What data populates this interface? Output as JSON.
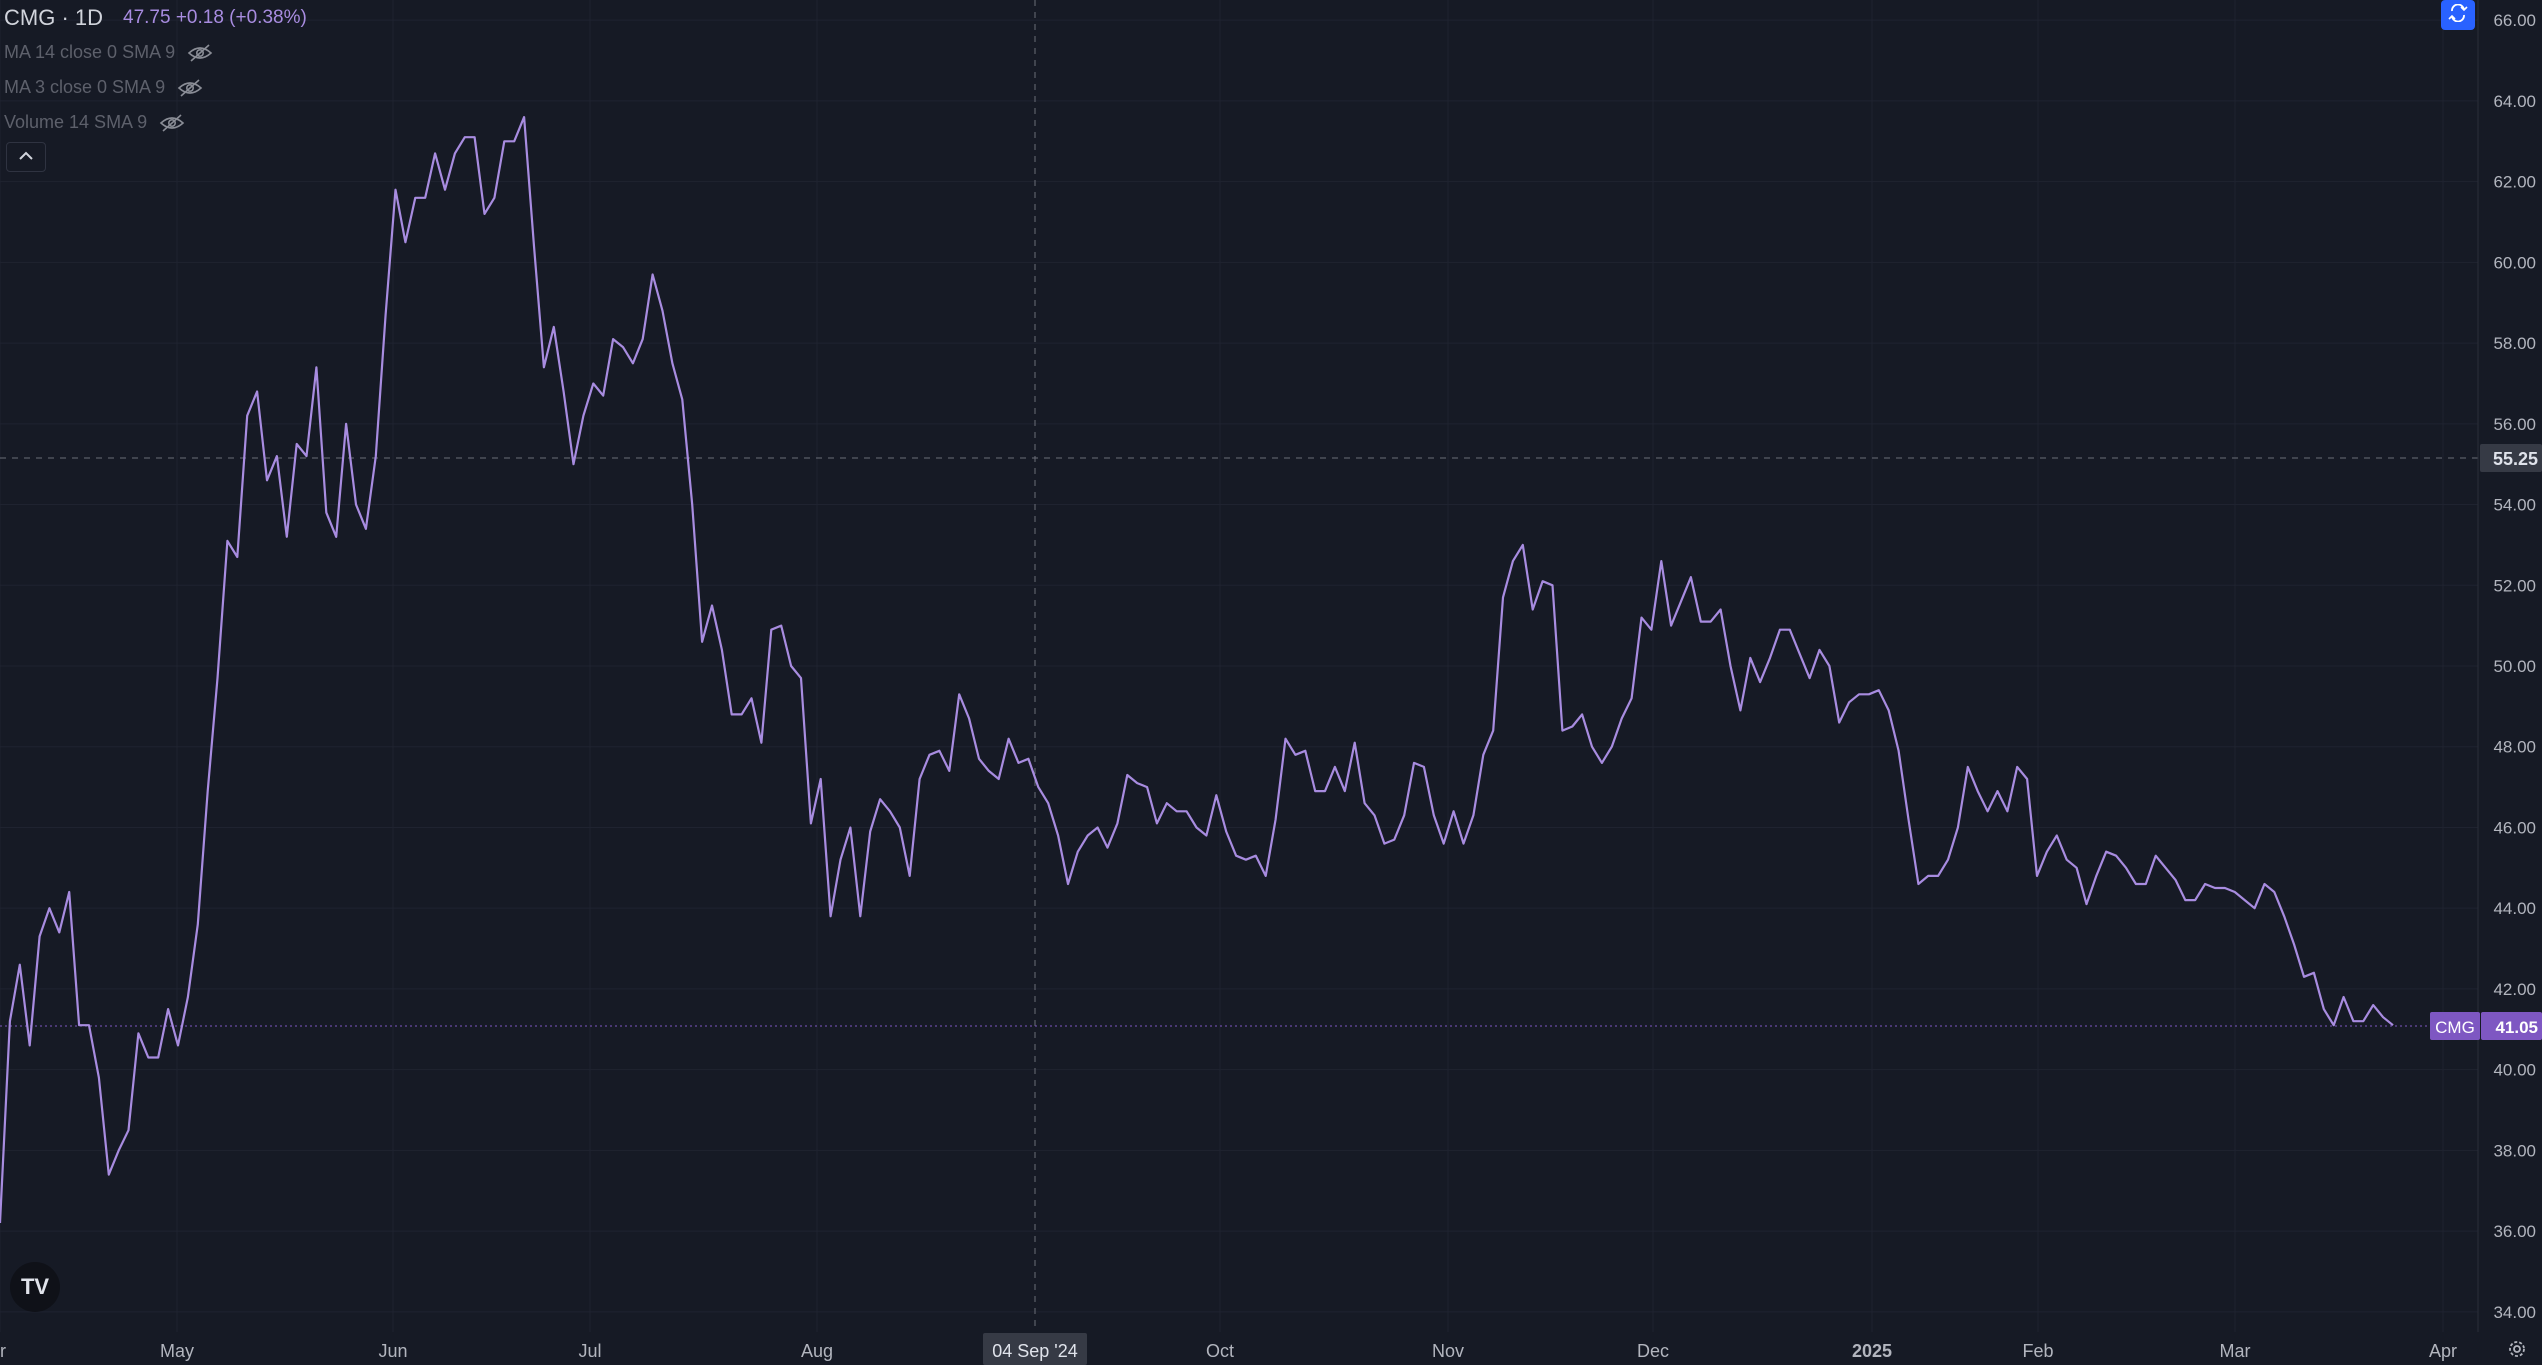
{
  "legend": {
    "symbol_title": "CMG · 1D",
    "quote": "47.75 +0.18 (+0.38%)",
    "indicators": [
      {
        "label": "MA 14 close 0 SMA 9",
        "icon": "eye-off-icon"
      },
      {
        "label": "MA 3 close 0 SMA 9",
        "icon": "eye-off-icon"
      },
      {
        "label": "Volume 14 SMA 9",
        "icon": "eye-off-icon"
      }
    ],
    "collapse_icon": "chevron-up-icon"
  },
  "logo": {
    "text": "TV"
  },
  "crosshair": {
    "date_label": "04 Sep '24",
    "price_label": "55.25"
  },
  "last_price": {
    "symbol": "CMG",
    "value": "41.05"
  },
  "colors": {
    "background": "#161a25",
    "line": "#a88ce0",
    "grid": "#1f2330",
    "axis_text": "#b2b5be",
    "accent": "#2962ff",
    "price_tag": "#7e57c2"
  },
  "chart_data": {
    "type": "line",
    "series": [
      {
        "name": "CMG",
        "values": [
          36.2,
          41.2,
          42.6,
          40.6,
          43.3,
          44.0,
          43.4,
          44.4,
          41.1,
          41.1,
          39.8,
          37.4,
          38.0,
          38.5,
          40.9,
          40.3,
          40.3,
          41.5,
          40.6,
          41.8,
          43.6,
          46.9,
          49.7,
          53.1,
          52.7,
          56.2,
          56.8,
          54.6,
          55.2,
          53.2,
          55.5,
          55.2,
          57.4,
          53.8,
          53.2,
          56.0,
          54.0,
          53.4,
          55.2,
          58.7,
          61.8,
          60.5,
          61.6,
          61.6,
          62.7,
          61.8,
          62.7,
          63.1,
          63.1,
          61.2,
          61.6,
          63.0,
          63.0,
          63.6,
          60.4,
          57.4,
          58.4,
          56.8,
          55.0,
          56.2,
          57.0,
          56.7,
          58.1,
          57.9,
          57.5,
          58.1,
          59.7,
          58.8,
          57.5,
          56.6,
          54.0,
          50.6,
          51.5,
          50.4,
          48.8,
          48.8,
          49.2,
          48.1,
          50.9,
          51.0,
          50.0,
          49.7,
          46.1,
          47.2,
          43.8,
          45.2,
          46.0,
          43.8,
          45.9,
          46.7,
          46.4,
          46.0,
          44.8,
          47.2,
          47.8,
          47.9,
          47.4,
          49.3,
          48.7,
          47.7,
          47.4,
          47.2,
          48.2,
          47.6,
          47.7,
          47.0,
          46.6,
          45.8,
          44.6,
          45.4,
          45.8,
          46.0,
          45.5,
          46.1,
          47.3,
          47.1,
          47.0,
          46.1,
          46.6,
          46.4,
          46.4,
          46.0,
          45.8,
          46.8,
          45.9,
          45.3,
          45.2,
          45.3,
          44.8,
          46.2,
          48.2,
          47.8,
          47.9,
          46.9,
          46.9,
          47.5,
          46.9,
          48.1,
          46.6,
          46.3,
          45.6,
          45.7,
          46.3,
          47.6,
          47.5,
          46.3,
          45.6,
          46.4,
          45.6,
          46.3,
          47.8,
          48.4,
          51.7,
          52.6,
          53.0,
          51.4,
          52.1,
          52.0,
          48.4,
          48.5,
          48.8,
          48.0,
          47.6,
          48.0,
          48.7,
          49.2,
          51.2,
          50.9,
          52.6,
          51.0,
          51.6,
          52.2,
          51.1,
          51.1,
          51.4,
          50.0,
          48.9,
          50.2,
          49.6,
          50.2,
          50.9,
          50.9,
          50.3,
          49.7,
          50.4,
          50.0,
          48.6,
          49.1,
          49.3,
          49.3,
          49.4,
          48.9,
          47.9,
          46.2,
          44.6,
          44.8,
          44.8,
          45.2,
          46.0,
          47.5,
          46.9,
          46.4,
          46.9,
          46.4,
          47.5,
          47.2,
          44.8,
          45.4,
          45.8,
          45.2,
          45.0,
          44.1,
          44.8,
          45.4,
          45.3,
          45.0,
          44.6,
          44.6,
          45.3,
          45.0,
          44.7,
          44.2,
          44.2,
          44.6,
          44.5,
          44.5,
          44.4,
          44.2,
          44.0,
          44.6,
          44.4,
          43.8,
          43.1,
          42.3,
          42.4,
          41.5,
          41.1,
          41.8,
          41.2,
          41.2,
          41.6,
          41.3,
          41.1
        ]
      }
    ],
    "x_labels": [
      "Apr",
      "May",
      "Jun",
      "Jul",
      "Aug",
      "Sep",
      "Oct",
      "Nov",
      "Dec",
      "2025",
      "Feb",
      "Mar",
      "Apr"
    ],
    "y_ticks": [
      34,
      36,
      38,
      40,
      42,
      44,
      46,
      48,
      50,
      52,
      54,
      56,
      58,
      60,
      62,
      64,
      66
    ],
    "ylim": [
      33.5,
      66.5
    ],
    "grid": true
  }
}
